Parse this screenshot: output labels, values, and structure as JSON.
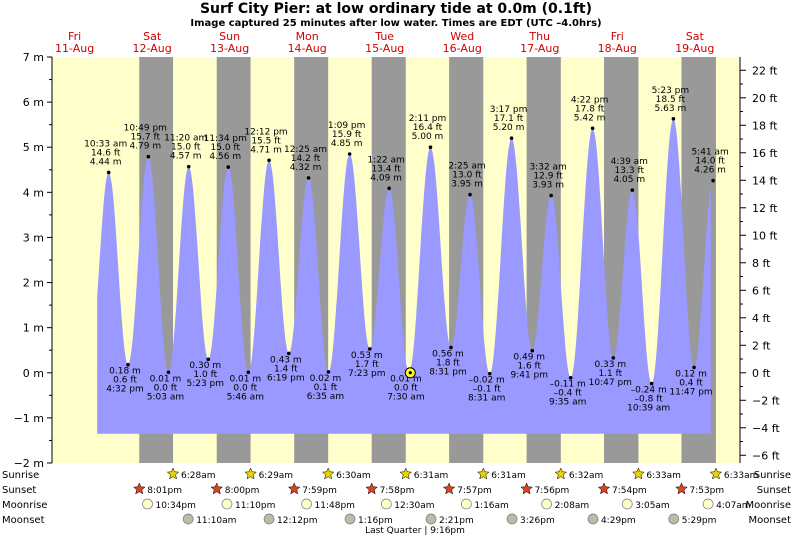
{
  "header": {
    "title": "Surf City Pier: at low  ordinary tide at 0.0m (0.1ft)",
    "subtitle": "Image captured 25 minutes after low water. Times are EDT (UTC –4.0hrs)"
  },
  "colors": {
    "day_band": "#ffffcc",
    "night_band": "#999999",
    "tide_fill": "#9999ff",
    "day_label": "#d00000",
    "sun_star": "#e8d200",
    "sunset_star": "#e04020",
    "moonrise": "#ffffcc",
    "moonset": "#bbbbaa"
  },
  "chart_data": {
    "type": "area",
    "x_unit": "hours since Fri 11-Aug 00:00 EDT",
    "xlim": [
      -7,
      206
    ],
    "y_left": {
      "unit": "m",
      "lim": [
        -2,
        7
      ],
      "ticks": [
        -2,
        -1,
        0,
        1,
        2,
        3,
        4,
        5,
        6,
        7
      ]
    },
    "y_right": {
      "unit": "ft",
      "ticks": [
        -6,
        -4,
        -2,
        0,
        2,
        4,
        6,
        8,
        10,
        12,
        14,
        16,
        18,
        20,
        22
      ]
    },
    "days": [
      {
        "name": "Fri",
        "date": "11-Aug"
      },
      {
        "name": "Sat",
        "date": "12-Aug"
      },
      {
        "name": "Sun",
        "date": "13-Aug"
      },
      {
        "name": "Mon",
        "date": "14-Aug"
      },
      {
        "name": "Tue",
        "date": "15-Aug"
      },
      {
        "name": "Wed",
        "date": "16-Aug"
      },
      {
        "name": "Thu",
        "date": "17-Aug"
      },
      {
        "name": "Fri",
        "date": "18-Aug"
      },
      {
        "name": "Sat",
        "date": "19-Aug"
      }
    ],
    "night_bands": [
      [
        20.02,
        30.47
      ],
      [
        44.0,
        54.48
      ],
      [
        67.98,
        78.5
      ],
      [
        91.97,
        102.52
      ],
      [
        115.95,
        126.52
      ],
      [
        139.93,
        150.53
      ],
      [
        163.9,
        174.55
      ],
      [
        187.88,
        198.55
      ]
    ],
    "tide_domain": [
      7,
      197
    ],
    "events": [
      {
        "time": "10:33 am",
        "t": 10.55,
        "m": 4.44,
        "ft": "14.6 ft",
        "m_label": "4.44 m",
        "type": "high"
      },
      {
        "time": "4:32 pm",
        "t": 16.53,
        "m": 0.18,
        "ft": "0.6 ft",
        "m_label": "0.18 m",
        "type": "low"
      },
      {
        "time": "10:49 pm",
        "t": 22.82,
        "m": 4.79,
        "ft": "15.7 ft",
        "m_label": "4.79 m",
        "type": "high"
      },
      {
        "time": "5:03 am",
        "t": 29.05,
        "m": 0.01,
        "ft": "0.0 ft",
        "m_label": "0.01 m",
        "type": "low"
      },
      {
        "time": "11:20 am",
        "t": 35.33,
        "m": 4.57,
        "ft": "15.0 ft",
        "m_label": "4.57 m",
        "type": "high"
      },
      {
        "time": "5:23 pm",
        "t": 41.38,
        "m": 0.3,
        "ft": "1.0 ft",
        "m_label": "0.30 m",
        "type": "low"
      },
      {
        "time": "11:34 pm",
        "t": 47.57,
        "m": 4.56,
        "ft": "15.0 ft",
        "m_label": "4.56 m",
        "type": "high"
      },
      {
        "time": "5:46 am",
        "t": 53.77,
        "m": 0.01,
        "ft": "0.0 ft",
        "m_label": "0.01 m",
        "type": "low"
      },
      {
        "time": "12:12 pm",
        "t": 60.2,
        "m": 4.71,
        "ft": "15.5 ft",
        "m_label": "4.71 m",
        "type": "high"
      },
      {
        "time": "6:19 pm",
        "t": 66.32,
        "m": 0.43,
        "ft": "1.4 ft",
        "m_label": "0.43 m",
        "type": "low"
      },
      {
        "time": "12:25 am",
        "t": 72.42,
        "m": 4.32,
        "ft": "14.2 ft",
        "m_label": "4.32 m",
        "type": "high"
      },
      {
        "time": "6:35 am",
        "t": 78.58,
        "m": 0.02,
        "ft": "0.1 ft",
        "m_label": "0.02 m",
        "type": "low"
      },
      {
        "time": "1:09 pm",
        "t": 85.15,
        "m": 4.85,
        "ft": "15.9 ft",
        "m_label": "4.85 m",
        "type": "high"
      },
      {
        "time": "7:23 pm",
        "t": 91.38,
        "m": 0.53,
        "ft": "1.7 ft",
        "m_label": "0.53 m",
        "type": "low"
      },
      {
        "time": "1:22 am",
        "t": 97.37,
        "m": 4.09,
        "ft": "13.4 ft",
        "m_label": "4.09 m",
        "type": "high"
      },
      {
        "time": "7:30 am",
        "t": 103.5,
        "m": 0.01,
        "ft": "0.0 ft",
        "m_label": "0.01 m",
        "type": "low"
      },
      {
        "time": "2:11 pm",
        "t": 110.18,
        "m": 5.0,
        "ft": "16.4 ft",
        "m_label": "5.00 m",
        "type": "high"
      },
      {
        "time": "8:31 pm",
        "t": 116.52,
        "m": 0.56,
        "ft": "1.8 ft",
        "m_label": "0.56 m",
        "type": "low"
      },
      {
        "time": "2:25 am",
        "t": 122.42,
        "m": 3.95,
        "ft": "13.0 ft",
        "m_label": "3.95 m",
        "type": "high"
      },
      {
        "time": "8:31 am",
        "t": 128.52,
        "m": -0.02,
        "ft": "–0.1 ft",
        "m_label": "–0.02 m",
        "type": "low"
      },
      {
        "time": "3:17 pm",
        "t": 135.28,
        "m": 5.2,
        "ft": "17.1 ft",
        "m_label": "5.20 m",
        "type": "high"
      },
      {
        "time": "9:41 pm",
        "t": 141.68,
        "m": 0.49,
        "ft": "1.6 ft",
        "m_label": "0.49 m",
        "type": "low"
      },
      {
        "time": "3:32 am",
        "t": 147.53,
        "m": 3.93,
        "ft": "12.9 ft",
        "m_label": "3.93 m",
        "type": "high"
      },
      {
        "time": "9:35 am",
        "t": 153.58,
        "m": -0.11,
        "ft": "–0.4 ft",
        "m_label": "–0.11 m",
        "type": "low"
      },
      {
        "time": "4:22 pm",
        "t": 160.37,
        "m": 5.42,
        "ft": "17.8 ft",
        "m_label": "5.42 m",
        "type": "high"
      },
      {
        "time": "10:47 pm",
        "t": 166.78,
        "m": 0.33,
        "ft": "1.1 ft",
        "m_label": "0.33 m",
        "type": "low"
      },
      {
        "time": "4:39 am",
        "t": 172.65,
        "m": 4.05,
        "ft": "13.3 ft",
        "m_label": "4.05 m",
        "type": "high"
      },
      {
        "time": "10:39 am",
        "t": 178.65,
        "m": -0.24,
        "ft": "–0.8 ft",
        "m_label": "–0.24 m",
        "type": "low"
      },
      {
        "time": "5:23 pm",
        "t": 185.38,
        "m": 5.63,
        "ft": "18.5 ft",
        "m_label": "5.63 m",
        "type": "high"
      },
      {
        "time": "11:47 pm",
        "t": 191.78,
        "m": 0.12,
        "ft": "0.4 ft",
        "m_label": "0.12 m",
        "type": "low"
      },
      {
        "time": "5:41 am",
        "t": 197.68,
        "m": 4.26,
        "ft": "14.0 ft",
        "m_label": "4.26 m",
        "type": "high"
      }
    ],
    "current": {
      "t": 103.92,
      "m": 0.0
    },
    "sun_moon": {
      "labels": {
        "sunrise": "Sunrise",
        "sunset": "Sunset",
        "moonrise": "Moonrise",
        "moonset": "Moonset"
      },
      "sunrise": [
        {
          "t": 30.47,
          "time": "6:28am"
        },
        {
          "t": 54.48,
          "time": "6:29am"
        },
        {
          "t": 78.5,
          "time": "6:30am"
        },
        {
          "t": 102.52,
          "time": "6:31am"
        },
        {
          "t": 126.52,
          "time": "6:31am"
        },
        {
          "t": 150.53,
          "time": "6:32am"
        },
        {
          "t": 174.55,
          "time": "6:33am"
        },
        {
          "t": 198.55,
          "time": "6:33am"
        }
      ],
      "sunset": [
        {
          "t": 20.02,
          "time": "8:01pm"
        },
        {
          "t": 44.0,
          "time": "8:00pm"
        },
        {
          "t": 67.98,
          "time": "7:59pm"
        },
        {
          "t": 91.97,
          "time": "7:58pm"
        },
        {
          "t": 115.95,
          "time": "7:57pm"
        },
        {
          "t": 139.93,
          "time": "7:56pm"
        },
        {
          "t": 163.9,
          "time": "7:54pm"
        },
        {
          "t": 187.88,
          "time": "7:53pm"
        }
      ],
      "moonrise": [
        {
          "t": 22.57,
          "time": "10:34pm"
        },
        {
          "t": 47.17,
          "time": "11:10pm"
        },
        {
          "t": 71.8,
          "time": "11:48pm"
        },
        {
          "t": 96.5,
          "time": "12:30am"
        },
        {
          "t": 121.27,
          "time": "1:16am"
        },
        {
          "t": 146.13,
          "time": "2:08am"
        },
        {
          "t": 171.08,
          "time": "3:05am"
        },
        {
          "t": 196.12,
          "time": "4:07am"
        }
      ],
      "moonset": [
        {
          "t": 35.17,
          "time": "11:10am"
        },
        {
          "t": 60.2,
          "time": "12:12pm"
        },
        {
          "t": 85.27,
          "time": "1:16pm"
        },
        {
          "t": 110.35,
          "time": "2:21pm"
        },
        {
          "t": 135.43,
          "time": "3:26pm"
        },
        {
          "t": 160.48,
          "time": "4:29pm"
        },
        {
          "t": 185.48,
          "time": "5:29pm"
        }
      ],
      "moon_phase": {
        "t": 106.0,
        "label": "Last Quarter | 9:16pm"
      }
    }
  }
}
